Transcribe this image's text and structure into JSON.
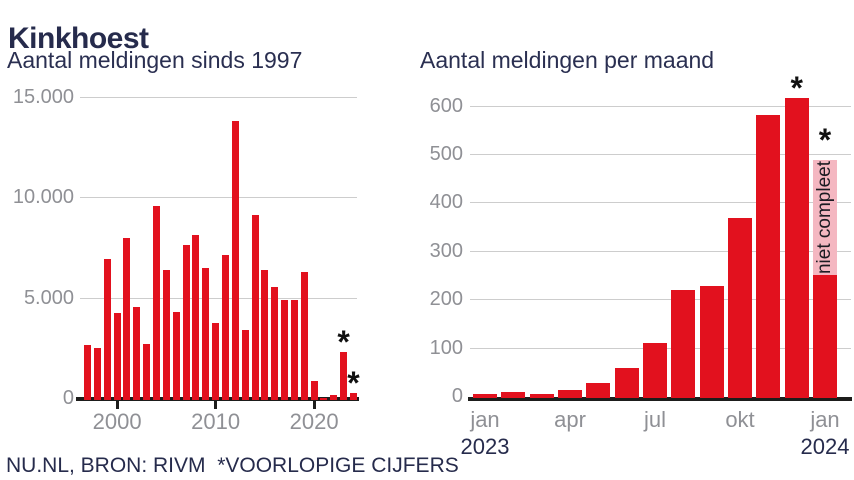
{
  "header": {
    "title": "Kinkhoest"
  },
  "footer": {
    "text": "NU.NL, BRON: RIVM  *VOORLOPIGE CIJFERS"
  },
  "colors": {
    "bar_red": "#e2111e",
    "bar_pink": "#f4b7c1",
    "navy": "#262b4c",
    "label_gray": "#8f9095",
    "grid": "#cdcdcd",
    "axis": "#1d1d1b",
    "annotation": "#111111"
  },
  "chart_data": [
    {
      "id": "yearly",
      "type": "bar",
      "title": "Aantal meldingen sinds 1997",
      "ylabel": "",
      "xlabel": "",
      "grid": true,
      "legend": "none",
      "ylim": [
        0,
        15000
      ],
      "categories": [
        "1997",
        "1998",
        "1999",
        "2000",
        "2001",
        "2002",
        "2003",
        "2004",
        "2005",
        "2006",
        "2007",
        "2008",
        "2009",
        "2010",
        "2011",
        "2012",
        "2013",
        "2014",
        "2015",
        "2016",
        "2017",
        "2018",
        "2019",
        "2020",
        "2021",
        "2022",
        "2023",
        "2024"
      ],
      "values": [
        2650,
        2500,
        6950,
        4250,
        8000,
        4550,
        2700,
        9550,
        6400,
        4300,
        7650,
        8150,
        6500,
        3750,
        7150,
        13800,
        3400,
        9100,
        6400,
        5550,
        4900,
        4900,
        6300,
        850,
        10,
        150,
        2300,
        250
      ],
      "preliminary_categories": [
        "2023",
        "2024"
      ],
      "annotation_symbol": "*",
      "yticks": [
        {
          "value": 0,
          "label": "0"
        },
        {
          "value": 5000,
          "label": "5.000"
        },
        {
          "value": 10000,
          "label": "10.000"
        },
        {
          "value": 15000,
          "label": "15.000"
        }
      ],
      "xticks": [
        {
          "category": "2000",
          "label": "2000"
        },
        {
          "category": "2010",
          "label": "2010"
        },
        {
          "category": "2020",
          "label": "2020"
        }
      ]
    },
    {
      "id": "monthly",
      "type": "bar",
      "title": "Aantal meldingen per maand",
      "ylabel": "",
      "xlabel": "",
      "grid": true,
      "legend": "none",
      "ylim": [
        0,
        650
      ],
      "categories": [
        "jan 2023",
        "feb 2023",
        "mrt 2023",
        "apr 2023",
        "mei 2023",
        "jun 2023",
        "jul 2023",
        "aug 2023",
        "sep 2023",
        "okt 2023",
        "nov 2023",
        "dec 2023",
        "jan 2024"
      ],
      "values": [
        5,
        9,
        4,
        12,
        26,
        58,
        110,
        220,
        228,
        367,
        580,
        615,
        250
      ],
      "preliminary_categories": [
        "dec 2023",
        "jan 2024"
      ],
      "annotation_symbol": "*",
      "incomplete": {
        "category": "jan 2024",
        "reported_value": 250,
        "shaded_top_value": 487,
        "label": "niet compleet"
      },
      "yticks": [
        {
          "value": 0,
          "label": "0"
        },
        {
          "value": 100,
          "label": "100"
        },
        {
          "value": 200,
          "label": "200"
        },
        {
          "value": 300,
          "label": "300"
        },
        {
          "value": 400,
          "label": "400"
        },
        {
          "value": 500,
          "label": "500"
        },
        {
          "value": 600,
          "label": "600"
        }
      ],
      "xticks": [
        {
          "category": "jan 2023",
          "label": "jan"
        },
        {
          "category": "apr 2023",
          "label": "apr"
        },
        {
          "category": "jul 2023",
          "label": "jul"
        },
        {
          "category": "okt 2023",
          "label": "okt"
        },
        {
          "category": "jan 2024",
          "label": "jan"
        }
      ],
      "x_year_labels": [
        {
          "category": "jan 2023",
          "label": "2023"
        },
        {
          "category": "jan 2024",
          "label": "2024"
        }
      ]
    }
  ]
}
